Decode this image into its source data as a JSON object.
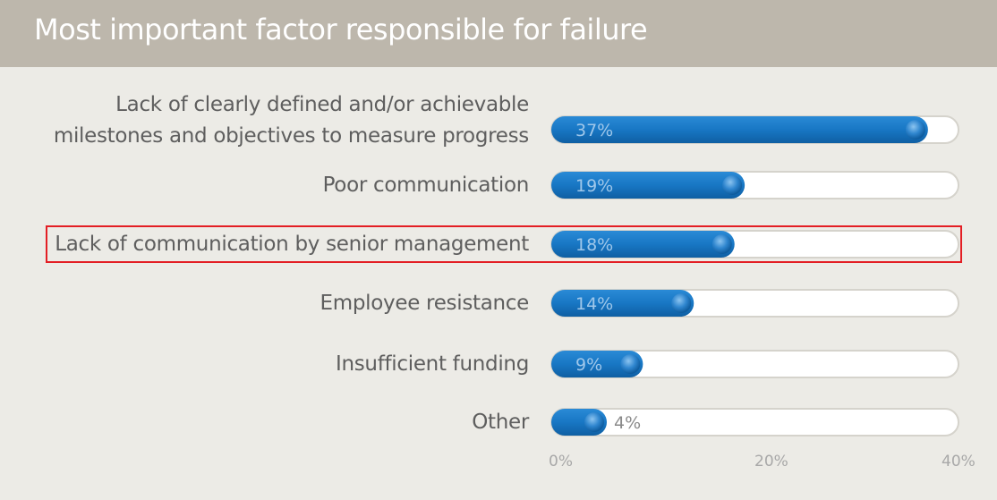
{
  "chart_data": {
    "type": "bar",
    "orientation": "horizontal",
    "title": "Most important factor responsible for failure",
    "categories": [
      [
        "Lack of clearly defined and/or achievable",
        "milestones and objectives to measure progress"
      ],
      [
        "Poor communication"
      ],
      [
        "Lack of communication by senior management"
      ],
      [
        "Employee resistance"
      ],
      [
        "Insufficient funding"
      ],
      [
        "Other"
      ]
    ],
    "values": [
      37,
      19,
      18,
      14,
      9,
      4
    ],
    "value_labels": [
      "37%",
      "19%",
      "18%",
      "14%",
      "9%",
      "4%"
    ],
    "xlim": [
      0,
      40
    ],
    "xticks": [
      "0%",
      "20%",
      "40%"
    ],
    "highlighted_index": 2,
    "colors": {
      "bar": "#1877c4",
      "track": "#ffffff",
      "label_text": "#5e5e5e",
      "value_text_inside": "#9fc7ea",
      "value_text_outside": "#8a8a8a",
      "highlight_border": "#e31e24",
      "header_bg": "#bdb7ac"
    }
  }
}
